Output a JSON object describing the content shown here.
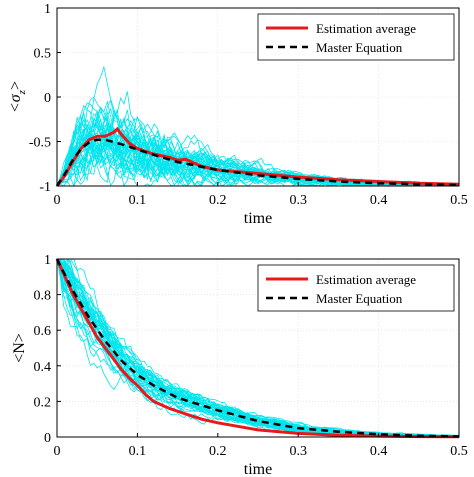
{
  "chart_data": [
    {
      "type": "line",
      "xlabel": "time",
      "ylabel_main": "<σ",
      "ylabel_sub": "z",
      "ylabel_end": ">",
      "xlim": [
        0,
        0.5
      ],
      "ylim": [
        -1,
        1
      ],
      "xticks": [
        "0",
        "0.1",
        "0.2",
        "0.3",
        "0.4",
        "0.5"
      ],
      "yticks": [
        "-1",
        "-0.5",
        "0",
        "0.5",
        "1"
      ],
      "xtick_values": [
        0,
        0.1,
        0.2,
        0.3,
        0.4,
        0.5
      ],
      "ytick_values": [
        -1,
        -0.5,
        0,
        0.5,
        1
      ],
      "grid": true,
      "legend_position": "top-right",
      "trajectory_color": "#00e5ee",
      "trajectory_count": 40,
      "series": [
        {
          "name": "Estimation average",
          "color": "#e8191b",
          "style": "solid",
          "x": [
            0,
            0.01,
            0.02,
            0.03,
            0.04,
            0.05,
            0.06,
            0.07,
            0.075,
            0.08,
            0.09,
            0.1,
            0.12,
            0.14,
            0.15,
            0.16,
            0.18,
            0.2,
            0.25,
            0.3,
            0.35,
            0.4,
            0.45,
            0.5
          ],
          "values": [
            -1,
            -0.88,
            -0.72,
            -0.58,
            -0.48,
            -0.44,
            -0.44,
            -0.4,
            -0.36,
            -0.42,
            -0.52,
            -0.58,
            -0.64,
            -0.68,
            -0.71,
            -0.7,
            -0.78,
            -0.82,
            -0.86,
            -0.9,
            -0.93,
            -0.95,
            -0.97,
            -0.98
          ]
        },
        {
          "name": "Master Equation",
          "color": "#000000",
          "style": "dashed",
          "x": [
            0,
            0.01,
            0.02,
            0.03,
            0.04,
            0.05,
            0.06,
            0.08,
            0.1,
            0.12,
            0.15,
            0.2,
            0.25,
            0.3,
            0.35,
            0.4,
            0.45,
            0.5
          ],
          "values": [
            -1,
            -0.86,
            -0.7,
            -0.58,
            -0.51,
            -0.48,
            -0.48,
            -0.53,
            -0.59,
            -0.65,
            -0.73,
            -0.82,
            -0.88,
            -0.92,
            -0.95,
            -0.97,
            -0.98,
            -0.99
          ]
        }
      ]
    },
    {
      "type": "line",
      "xlabel": "time",
      "ylabel": "<N>",
      "xlim": [
        0,
        0.5
      ],
      "ylim": [
        0,
        1
      ],
      "xticks": [
        "0",
        "0.1",
        "0.2",
        "0.3",
        "0.4",
        "0.5"
      ],
      "yticks": [
        "0",
        "0.2",
        "0.4",
        "0.6",
        "0.8",
        "1"
      ],
      "xtick_values": [
        0,
        0.1,
        0.2,
        0.3,
        0.4,
        0.5
      ],
      "ytick_values": [
        0,
        0.2,
        0.4,
        0.6,
        0.8,
        1
      ],
      "grid": true,
      "legend_position": "top-right",
      "trajectory_color": "#00e5ee",
      "trajectory_count": 40,
      "series": [
        {
          "name": "Estimation average",
          "color": "#e8191b",
          "style": "solid",
          "x": [
            0,
            0.01,
            0.02,
            0.03,
            0.04,
            0.05,
            0.06,
            0.07,
            0.08,
            0.09,
            0.1,
            0.11,
            0.12,
            0.14,
            0.16,
            0.18,
            0.2,
            0.25,
            0.3,
            0.35,
            0.4,
            0.45,
            0.5
          ],
          "values": [
            1,
            0.9,
            0.8,
            0.72,
            0.64,
            0.56,
            0.5,
            0.44,
            0.38,
            0.33,
            0.29,
            0.24,
            0.2,
            0.16,
            0.13,
            0.1,
            0.08,
            0.04,
            0.02,
            0.01,
            0.005,
            0.002,
            0.001
          ]
        },
        {
          "name": "Master Equation",
          "color": "#000000",
          "style": "dashed",
          "x": [
            0,
            0.02,
            0.04,
            0.06,
            0.08,
            0.1,
            0.12,
            0.15,
            0.2,
            0.25,
            0.3,
            0.35,
            0.4,
            0.45,
            0.5
          ],
          "values": [
            1,
            0.82,
            0.67,
            0.54,
            0.43,
            0.35,
            0.29,
            0.22,
            0.15,
            0.09,
            0.05,
            0.03,
            0.015,
            0.007,
            0.003
          ]
        }
      ]
    }
  ]
}
